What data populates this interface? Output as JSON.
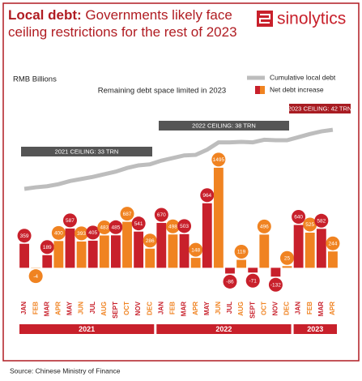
{
  "chart_data": {
    "type": "bar",
    "title_lead": "Local debt:",
    "title": "Governments likely face ceiling restrictions for the rest of 2023",
    "brand": "sinolytics",
    "subtitle": "Remaining debt space limited in 2023",
    "y_label": "RMB Billions",
    "source": "Source: Chinese Ministry of Finance",
    "categories": [
      "JAN",
      "FEB",
      "MAR",
      "APR",
      "MAY",
      "JUN",
      "JUL",
      "AUG",
      "SEPT",
      "OCT",
      "NOV",
      "DEC",
      "JAN",
      "FEB",
      "MAR",
      "APR",
      "MAY",
      "JUN",
      "JUL",
      "AUG",
      "SEPT",
      "OCT",
      "NOV",
      "DEC",
      "JAN",
      "FEB",
      "MAR",
      "APR"
    ],
    "groups": [
      {
        "label": "2021",
        "size": 12
      },
      {
        "label": "2022",
        "size": 12
      },
      {
        "label": "2023",
        "size": 4
      }
    ],
    "series": [
      {
        "name": "Net debt increase",
        "colors": [
          "#c8202b",
          "#f08321"
        ],
        "values": [
          359,
          -4,
          189,
          400,
          587,
          393,
          405,
          483,
          485,
          687,
          541,
          286,
          670,
          498,
          503,
          148,
          964,
          1495,
          -86,
          119,
          -71,
          496,
          -132,
          25,
          640,
          525,
          582,
          244
        ]
      },
      {
        "name": "Cumulative local debt",
        "type": "line",
        "axis": "y2",
        "color": "#bdbdbd",
        "values": [
          25.8,
          26.1,
          26.3,
          26.7,
          27.3,
          27.7,
          28.1,
          28.6,
          29.1,
          29.8,
          30.3,
          30.5,
          31.2,
          31.7,
          32.2,
          32.3,
          33.3,
          34.7,
          34.7,
          34.8,
          34.7,
          35.2,
          35.1,
          35.1,
          35.7,
          36.3,
          36.8,
          37.1
        ]
      }
    ],
    "annotations": [
      "2021 CEILING: 33 TRN",
      "2022 CEILING: 38 TRN",
      "2023 CEILING: 42 TRN"
    ],
    "ylim": [
      -250,
      2850
    ],
    "y2lim": [
      7.5,
      47.2
    ]
  }
}
